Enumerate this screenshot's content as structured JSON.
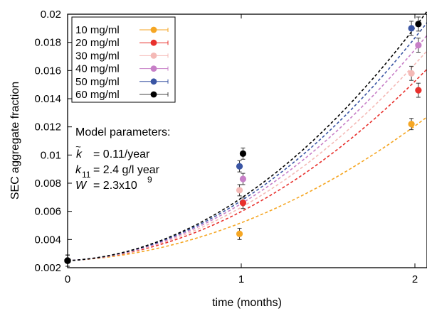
{
  "chart_data": {
    "type": "scatter",
    "xlabel": "time (months)",
    "ylabel": "SEC aggregate fraction",
    "xlim": [
      0,
      2.07
    ],
    "ylim": [
      0.002,
      0.02
    ],
    "xticks": [
      0,
      1,
      2
    ],
    "xtick_labels": [
      "0",
      "1",
      "2"
    ],
    "yticks": [
      0.002,
      0.004,
      0.006,
      0.008,
      0.01,
      0.012,
      0.014,
      0.016,
      0.018,
      0.02
    ],
    "ytick_labels": [
      "0.002",
      "0.004",
      "0.006",
      "0.008",
      "0.01",
      "0.012",
      "0.014",
      "0.016",
      "0.018",
      "0.02"
    ],
    "grid": false,
    "legend_position": "top-left",
    "series": [
      {
        "name": "10 mg/ml",
        "color": "#f5a623",
        "points": [
          {
            "x": 0,
            "y": 0.0025,
            "err": 0.0004
          },
          {
            "x": 0.99,
            "y": 0.0044,
            "err": 0.0004
          },
          {
            "x": 1.98,
            "y": 0.0122,
            "err": 0.0004
          }
        ],
        "fit_end": 0.0127
      },
      {
        "name": "20 mg/ml",
        "color": "#e8302c",
        "points": [
          {
            "x": 0,
            "y": 0.0025,
            "err": 0.0004
          },
          {
            "x": 1.01,
            "y": 0.0066,
            "err": 0.0004
          },
          {
            "x": 2.02,
            "y": 0.0146,
            "err": 0.0005
          }
        ],
        "fit_end": 0.0161
      },
      {
        "name": "30 mg/ml",
        "color": "#f4b9b6",
        "points": [
          {
            "x": 0,
            "y": 0.0025,
            "err": 0.0004
          },
          {
            "x": 0.99,
            "y": 0.0075,
            "err": 0.0004
          },
          {
            "x": 1.98,
            "y": 0.0158,
            "err": 0.0005
          }
        ],
        "fit_end": 0.0174
      },
      {
        "name": "40 mg/ml",
        "color": "#c77fc7",
        "points": [
          {
            "x": 0,
            "y": 0.0025,
            "err": 0.0004
          },
          {
            "x": 1.01,
            "y": 0.0083,
            "err": 0.0004
          },
          {
            "x": 2.02,
            "y": 0.0178,
            "err": 0.0005
          }
        ],
        "fit_end": 0.0185
      },
      {
        "name": "50 mg/ml",
        "color": "#3a55a4",
        "points": [
          {
            "x": 0,
            "y": 0.0025,
            "err": 0.0004
          },
          {
            "x": 0.99,
            "y": 0.0092,
            "err": 0.0004
          },
          {
            "x": 1.98,
            "y": 0.019,
            "err": 0.0005
          }
        ],
        "fit_end": 0.0194
      },
      {
        "name": "60 mg/ml",
        "color": "#000000",
        "points": [
          {
            "x": 0,
            "y": 0.0025,
            "err": 0.0004
          },
          {
            "x": 1.01,
            "y": 0.0101,
            "err": 0.0004
          },
          {
            "x": 2.02,
            "y": 0.0193,
            "err": 0.0005
          }
        ],
        "fit_end": 0.0202
      }
    ],
    "annotations": {
      "heading": "Model parameters:",
      "lines": [
        {
          "symbol": "k",
          "subscript": "",
          "text": "= 0.11/year"
        },
        {
          "symbol": "k",
          "subscript": "11",
          "text": "= 2.4 g/l year"
        },
        {
          "symbol": "W",
          "subscript": "",
          "text": "= 2.3x10",
          "superscript": "9"
        }
      ]
    }
  }
}
